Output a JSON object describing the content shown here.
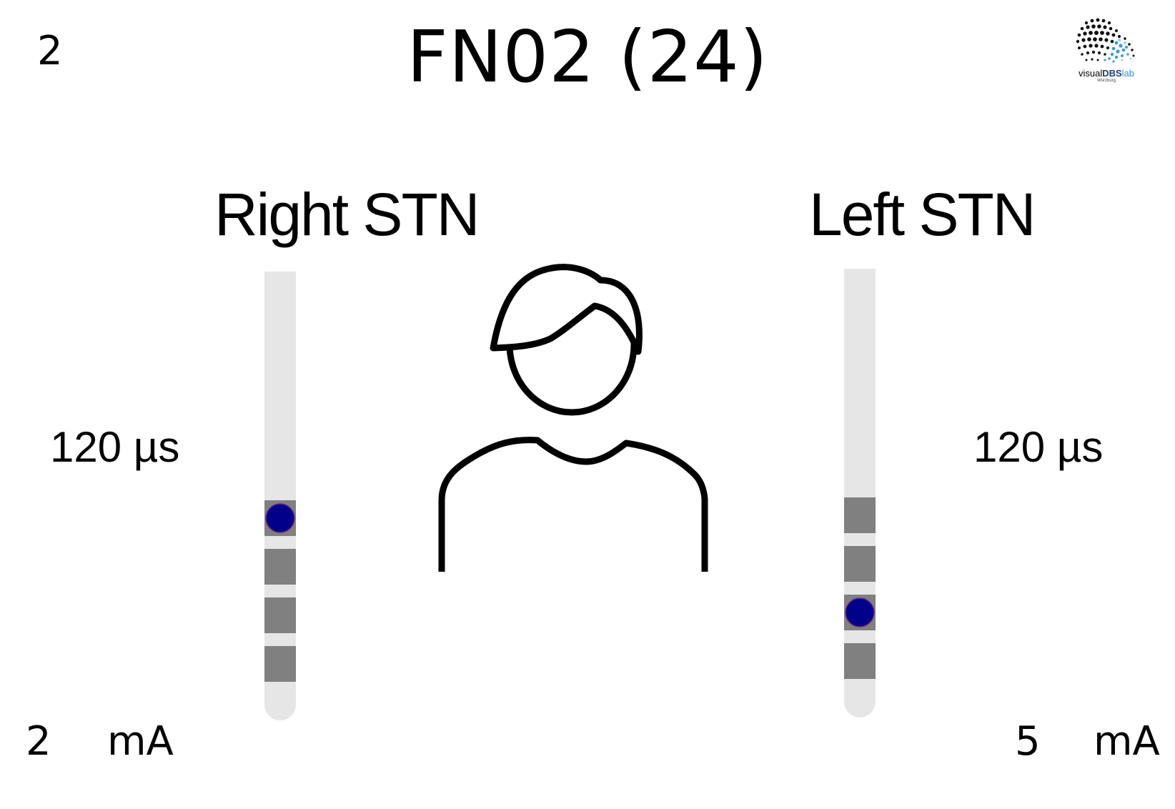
{
  "page_number": "2",
  "title": "FN02 (24)",
  "logo": {
    "text_prefix": "visual",
    "text_brand": "DBS",
    "text_suffix": "lab",
    "subtext": "Würzburg"
  },
  "person_icon": "person-outline-icon",
  "colors": {
    "lead_shaft": "#e6e6e6",
    "contact": "#808080",
    "active_contact": "#00008b"
  },
  "leads": [
    {
      "id": "right",
      "title": "Right STN",
      "pulse_width": "120 µs",
      "amplitude_value": "2",
      "amplitude_unit": "mA",
      "active_contacts": [
        0
      ]
    },
    {
      "id": "left",
      "title": "Left STN",
      "pulse_width": "120 µs",
      "amplitude_value": "5",
      "amplitude_unit": "mA",
      "active_contacts": [
        2
      ]
    }
  ]
}
